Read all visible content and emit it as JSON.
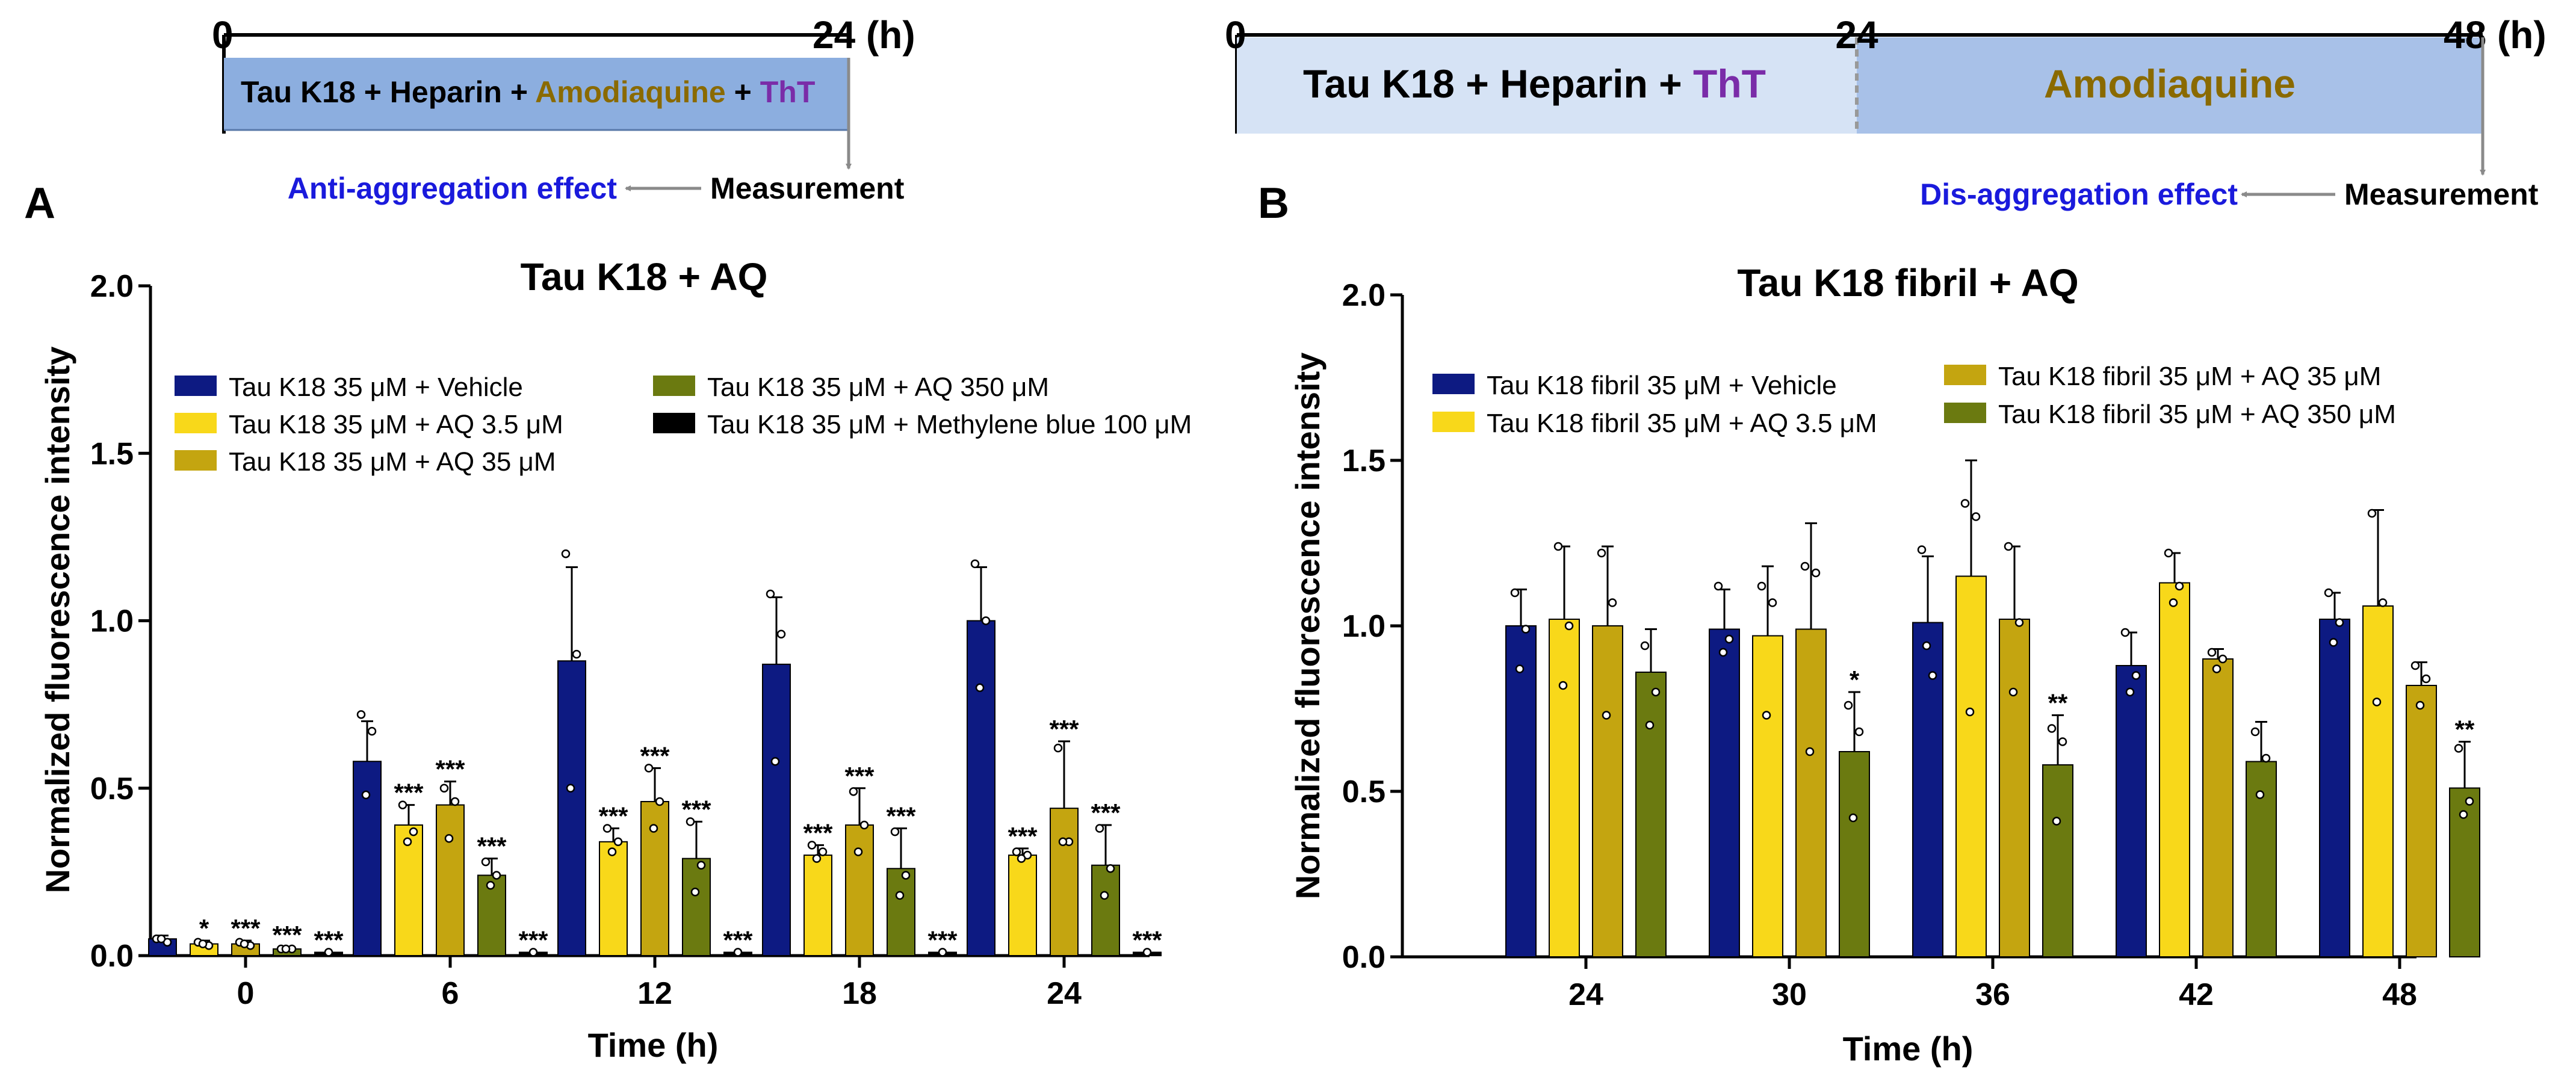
{
  "colors": {
    "vehicle": "#0d1a82",
    "aq_3_5": "#f8d81a",
    "aq_35": "#c4a510",
    "aq_350": "#6b7a10",
    "methylene_blue": "#000000",
    "amodiaquine_text": "#8a6a00",
    "tht_text": "#7a2ca8",
    "effect_text": "#1a1adc",
    "arrow_gray": "#8a8a8a",
    "timeline_box_a": "#8caedf",
    "timeline_box_b1": "#d6e3f5",
    "timeline_box_b2": "#a8c1e8"
  },
  "schemes": {
    "a": {
      "t0": "0",
      "t1": "24 (h)",
      "box_prefix": "Tau K18 + Heparin + ",
      "box_drug": "Amodiaquine",
      "box_plus": " + ",
      "box_dye": "ThT",
      "effect": "Anti-aggregation effect",
      "measurement": "Measurement"
    },
    "b": {
      "t0": "0",
      "t1": "24",
      "t2": "48 (h)",
      "box1_prefix": "Tau K18 + Heparin + ",
      "box1_dye": "ThT",
      "box2": "Amodiaquine",
      "effect": "Dis-aggregation effect",
      "measurement": "Measurement"
    }
  },
  "panel_labels": {
    "a": "A",
    "b": "B"
  },
  "chart_data": [
    {
      "type": "bar",
      "title": "Tau K18 + AQ",
      "xlabel": "Time (h)",
      "ylabel": "Normalized fluorescence intensity",
      "ylim": [
        0,
        2.0
      ],
      "yticks": [
        "0.0",
        "0.5",
        "1.0",
        "1.5",
        "2.0"
      ],
      "categories": [
        "0",
        "6",
        "12",
        "18",
        "24"
      ],
      "legend_placement": "top-left",
      "series": [
        {
          "name": "Tau K18 35 μM + Vehicle",
          "color_key": "vehicle",
          "values": [
            0.05,
            0.58,
            0.88,
            0.87,
            1.0
          ],
          "errors": [
            0.01,
            0.12,
            0.28,
            0.2,
            0.16
          ],
          "points": [
            [
              0.05,
              0.04,
              0.05
            ],
            [
              0.72,
              0.67,
              0.48
            ],
            [
              1.2,
              0.9,
              0.5
            ],
            [
              1.08,
              0.96,
              0.58
            ],
            [
              1.17,
              1.0,
              0.8
            ]
          ],
          "significance": [
            "",
            "",
            "",
            "",
            ""
          ]
        },
        {
          "name": "Tau K18 35 μM  + AQ 3.5 μM",
          "color_key": "aq_3_5",
          "values": [
            0.035,
            0.39,
            0.34,
            0.3,
            0.3
          ],
          "errors": [
            0.01,
            0.06,
            0.04,
            0.03,
            0.02
          ],
          "points": [
            [
              0.04,
              0.03,
              0.035
            ],
            [
              0.45,
              0.37,
              0.34
            ],
            [
              0.38,
              0.34,
              0.31
            ],
            [
              0.33,
              0.31,
              0.29
            ],
            [
              0.31,
              0.3,
              0.29
            ]
          ],
          "significance": [
            "*",
            "***",
            "***",
            "***",
            "***"
          ]
        },
        {
          "name": "Tau K18 35 μM  + AQ 35 μM",
          "color_key": "aq_35",
          "values": [
            0.035,
            0.45,
            0.46,
            0.39,
            0.44
          ],
          "errors": [
            0.01,
            0.07,
            0.1,
            0.11,
            0.2
          ],
          "points": [
            [
              0.04,
              0.03,
              0.035
            ],
            [
              0.5,
              0.46,
              0.35
            ],
            [
              0.56,
              0.46,
              0.38
            ],
            [
              0.49,
              0.39,
              0.31
            ],
            [
              0.62,
              0.34,
              0.34
            ]
          ],
          "significance": [
            "***",
            "***",
            "***",
            "***",
            "***"
          ]
        },
        {
          "name": "Tau K18 35 μM  + AQ 350 μM",
          "color_key": "aq_350",
          "values": [
            0.02,
            0.24,
            0.29,
            0.26,
            0.27
          ],
          "errors": [
            0.005,
            0.05,
            0.11,
            0.12,
            0.12
          ],
          "points": [
            [
              0.02,
              0.02,
              0.02
            ],
            [
              0.28,
              0.24,
              0.21
            ],
            [
              0.4,
              0.27,
              0.19
            ],
            [
              0.37,
              0.24,
              0.18
            ],
            [
              0.38,
              0.26,
              0.18
            ]
          ],
          "significance": [
            "***",
            "***",
            "***",
            "***",
            "***"
          ]
        },
        {
          "name": "Tau K18 35 μM  + Methylene blue 100 μM",
          "color_key": "methylene_blue",
          "values": [
            0.01,
            0.01,
            0.01,
            0.01,
            0.01
          ],
          "errors": [
            0,
            0,
            0,
            0,
            0
          ],
          "points": [
            [
              0.01
            ],
            [
              0.01
            ],
            [
              0.01
            ],
            [
              0.01
            ],
            [
              0.01
            ]
          ],
          "significance": [
            "***",
            "***",
            "***",
            "***",
            "***"
          ]
        }
      ]
    },
    {
      "type": "bar",
      "title": "Tau K18 fibril + AQ",
      "xlabel": "Time (h)",
      "ylabel": "Normalized fluorescence intensity",
      "ylim": [
        0,
        2.0
      ],
      "yticks": [
        "0.0",
        "0.5",
        "1.0",
        "1.5",
        "2.0"
      ],
      "categories": [
        "24",
        "30",
        "36",
        "42",
        "48"
      ],
      "legend_placement": "top",
      "series": [
        {
          "name": "Tau K18 fibril 35 μM + Vehicle",
          "color_key": "vehicle",
          "values": [
            1.0,
            0.99,
            1.01,
            0.88,
            1.02
          ],
          "errors": [
            0.11,
            0.12,
            0.2,
            0.1,
            0.08
          ],
          "points": [
            [
              1.1,
              0.99,
              0.87
            ],
            [
              1.12,
              0.96,
              0.92
            ],
            [
              1.23,
              0.85,
              0.94
            ],
            [
              0.98,
              0.85,
              0.8
            ],
            [
              1.1,
              1.01,
              0.95
            ]
          ],
          "significance": [
            "",
            "",
            "",
            "",
            ""
          ]
        },
        {
          "name": "Tau K18 fibril 35 μM + AQ 3.5 μM",
          "color_key": "aq_3_5",
          "values": [
            1.02,
            0.97,
            1.15,
            1.13,
            1.06
          ],
          "errors": [
            0.22,
            0.21,
            0.35,
            0.09,
            0.29
          ],
          "points": [
            [
              1.24,
              1.0,
              0.82
            ],
            [
              1.12,
              1.07,
              0.73
            ],
            [
              1.37,
              1.33,
              0.74
            ],
            [
              1.22,
              1.12,
              1.07
            ],
            [
              1.34,
              1.07,
              0.77
            ]
          ],
          "significance": [
            "",
            "",
            "",
            "",
            ""
          ]
        },
        {
          "name": "Tau K18 fibril 35 μM + AQ 35 μM",
          "color_key": "aq_35",
          "values": [
            1.0,
            0.99,
            1.02,
            0.9,
            0.82
          ],
          "errors": [
            0.24,
            0.32,
            0.22,
            0.03,
            0.07
          ],
          "points": [
            [
              1.22,
              1.07,
              0.73
            ],
            [
              1.18,
              1.16,
              0.62
            ],
            [
              1.24,
              1.01,
              0.8
            ],
            [
              0.92,
              0.9,
              0.87
            ],
            [
              0.88,
              0.84,
              0.76
            ]
          ],
          "significance": [
            "",
            "",
            "",
            "",
            ""
          ]
        },
        {
          "name": "Tau K18 fibril 35 μM + AQ 350 μM",
          "color_key": "aq_350",
          "values": [
            0.86,
            0.62,
            0.58,
            0.59,
            0.51
          ],
          "errors": [
            0.13,
            0.18,
            0.15,
            0.12,
            0.14
          ],
          "points": [
            [
              0.94,
              0.8,
              0.7
            ],
            [
              0.76,
              0.68,
              0.42
            ],
            [
              0.69,
              0.65,
              0.41
            ],
            [
              0.68,
              0.6,
              0.49
            ],
            [
              0.63,
              0.47,
              0.43
            ]
          ],
          "significance": [
            "",
            "*",
            "**",
            "",
            "**"
          ]
        }
      ]
    }
  ]
}
